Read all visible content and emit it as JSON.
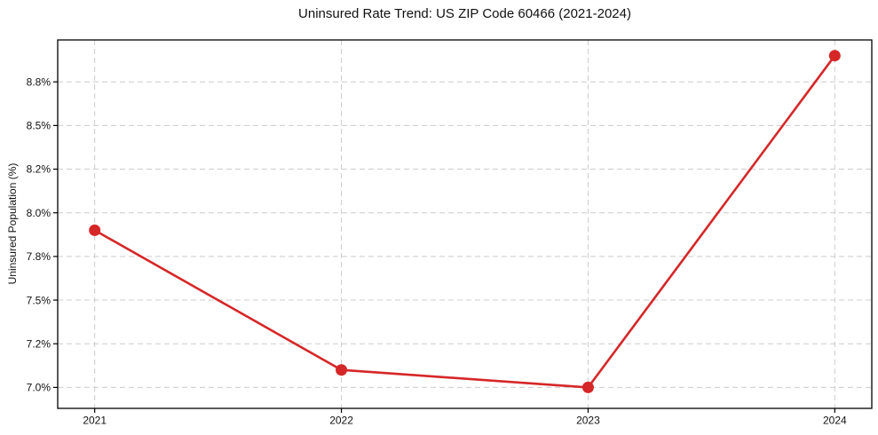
{
  "chart_data": {
    "type": "line",
    "title": "Uninsured Rate Trend: US ZIP Code 60466 (2021-2024)",
    "xlabel": "",
    "ylabel": "Uninsured Population (%)",
    "categories": [
      "2021",
      "2022",
      "2023",
      "2024"
    ],
    "values": [
      7.9,
      7.1,
      7.0,
      8.9
    ],
    "line_color": "#d62728",
    "marker": "circle",
    "ylim": [
      6.88,
      8.99
    ],
    "y_ticks": [
      {
        "value": 7.0,
        "label": "7.0%"
      },
      {
        "value": 7.25,
        "label": "7.2%"
      },
      {
        "value": 7.5,
        "label": "7.5%"
      },
      {
        "value": 7.75,
        "label": "7.8%"
      },
      {
        "value": 8.0,
        "label": "8.0%"
      },
      {
        "value": 8.25,
        "label": "8.2%"
      },
      {
        "value": 8.5,
        "label": "8.5%"
      },
      {
        "value": 8.75,
        "label": "8.8%"
      }
    ],
    "grid": true,
    "grid_color": "#cccccc",
    "grid_style": "dashed",
    "axis_color": "#000000",
    "text_color": "#111111",
    "legend_position": "none"
  }
}
